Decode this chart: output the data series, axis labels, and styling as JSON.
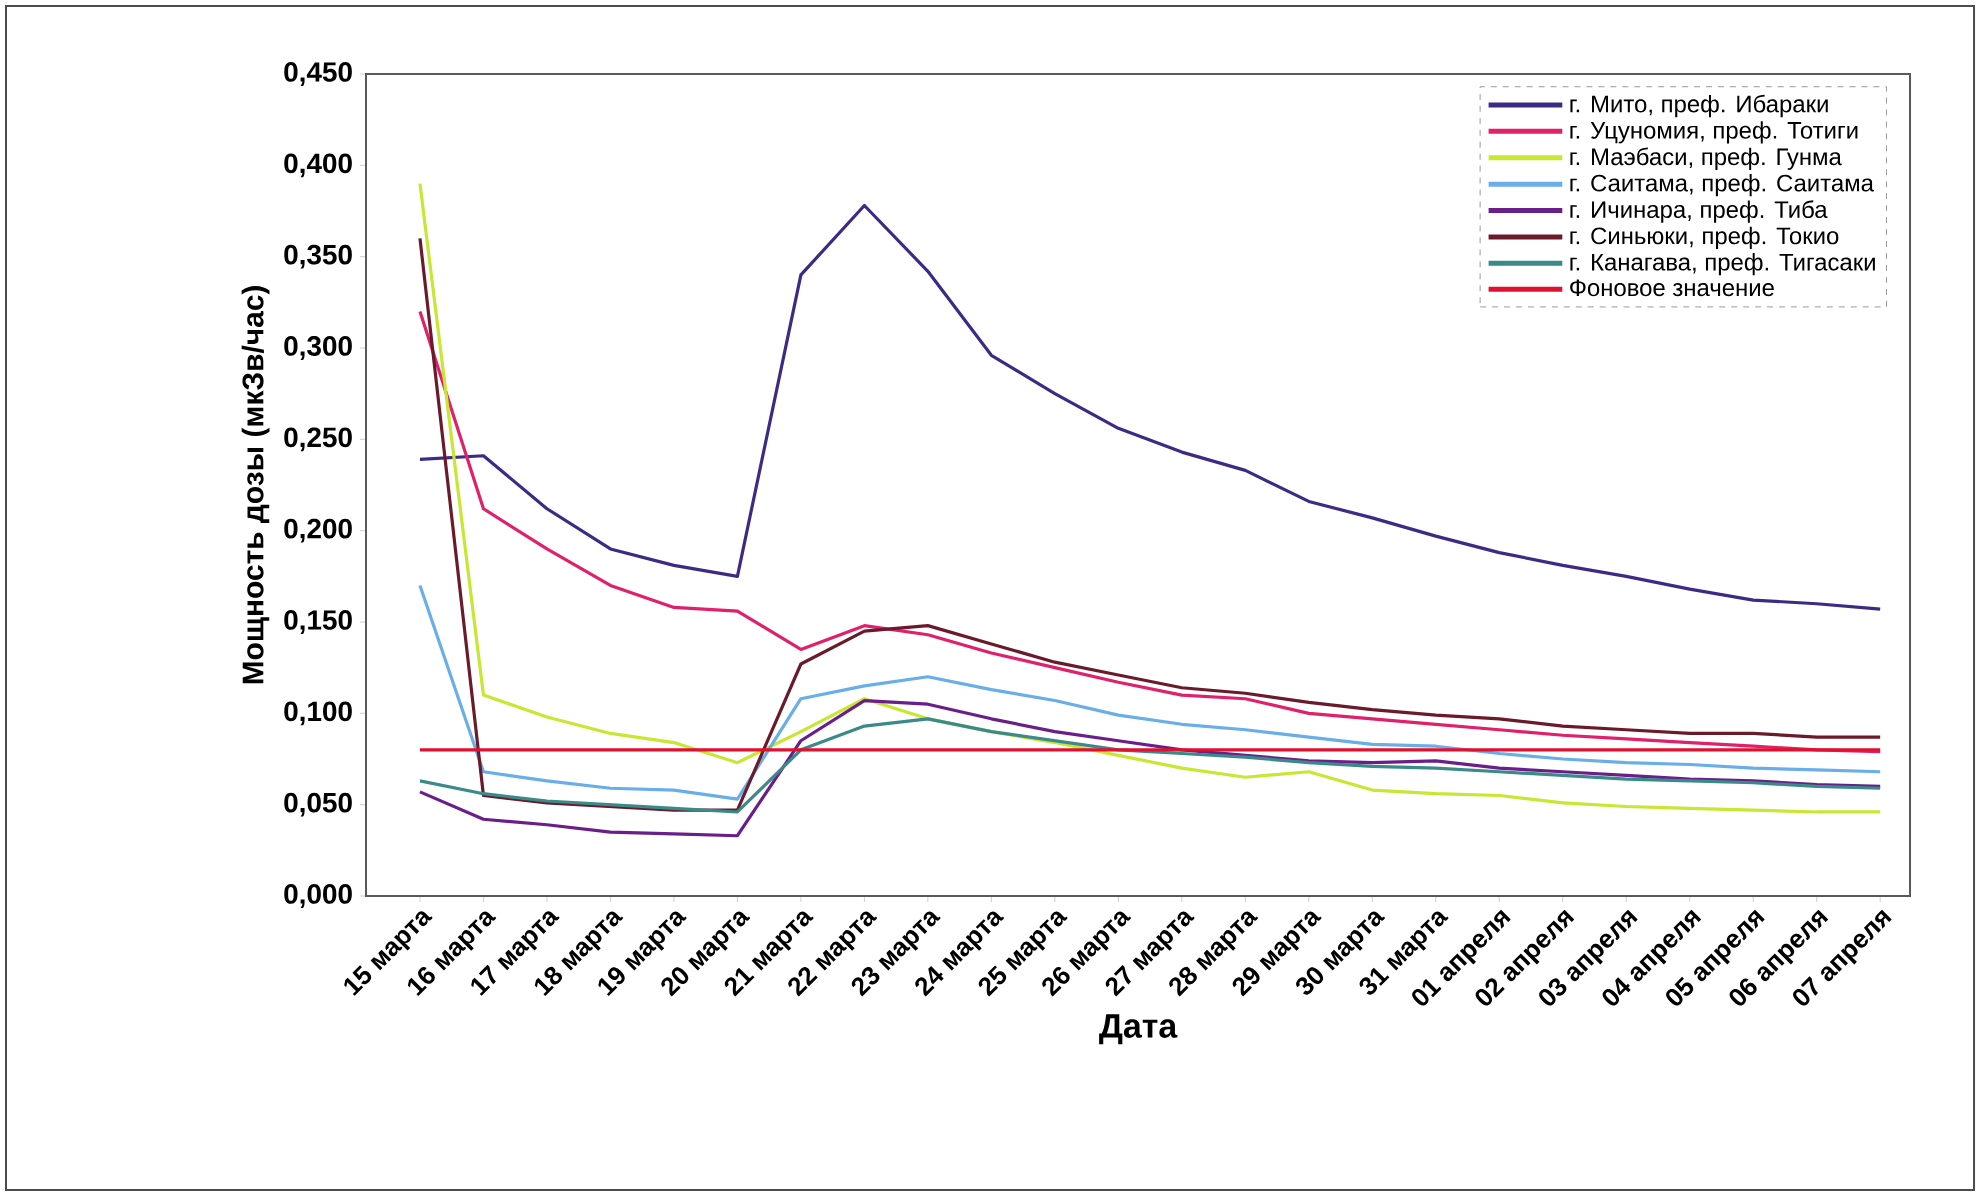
{
  "chart_data": {
    "type": "line",
    "xlabel": "Дата",
    "ylabel": "Мощность дозы (мкЗв/час)",
    "categories": [
      "15 марта",
      "16 марта",
      "17 марта",
      "18 марта",
      "19 марта",
      "20 марта",
      "21 марта",
      "22 марта",
      "23 марта",
      "24 марта",
      "25 марта",
      "26 марта",
      "27 марта",
      "28 марта",
      "29 марта",
      "30 марта",
      "31 марта",
      "01 апреля",
      "02 апреля",
      "03 апреля",
      "04 апреля",
      "05 апреля",
      "06 апреля",
      "07 апреля"
    ],
    "series": [
      {
        "name": "г. Мито, преф. Ибараки",
        "color": "#3d2a85",
        "values": [
          0.239,
          0.241,
          0.212,
          0.19,
          0.181,
          0.175,
          0.34,
          0.378,
          0.342,
          0.296,
          0.275,
          0.256,
          0.243,
          0.233,
          0.216,
          0.207,
          0.197,
          0.188,
          0.181,
          0.175,
          0.168,
          0.162,
          0.16,
          0.157
        ]
      },
      {
        "name": "г. Уцуномия, преф. Тотиги",
        "color": "#e0206a",
        "values": [
          0.32,
          0.212,
          0.19,
          0.17,
          0.158,
          0.156,
          0.135,
          0.148,
          0.143,
          0.133,
          0.125,
          0.117,
          0.11,
          0.108,
          0.1,
          0.097,
          0.094,
          0.091,
          0.088,
          0.086,
          0.084,
          0.082,
          0.08,
          0.079
        ]
      },
      {
        "name": "г. Маэбаси, преф. Гунма",
        "color": "#c8e632",
        "values": [
          0.39,
          0.11,
          0.098,
          0.089,
          0.084,
          0.073,
          0.09,
          0.108,
          0.097,
          0.09,
          0.084,
          0.077,
          0.07,
          0.065,
          0.068,
          0.058,
          0.056,
          0.055,
          0.051,
          0.049,
          0.048,
          0.047,
          0.046,
          0.046
        ]
      },
      {
        "name": "г. Саитама, преф. Саитама",
        "color": "#6aaee8",
        "values": [
          0.17,
          0.068,
          0.063,
          0.059,
          0.058,
          0.053,
          0.108,
          0.115,
          0.12,
          0.113,
          0.107,
          0.099,
          0.094,
          0.091,
          0.087,
          0.083,
          0.082,
          0.078,
          0.075,
          0.073,
          0.072,
          0.07,
          0.069,
          0.068
        ]
      },
      {
        "name": "г. Ичинара, преф. Тиба",
        "color": "#6a1e8a",
        "values": [
          0.057,
          0.042,
          0.039,
          0.035,
          0.034,
          0.033,
          0.085,
          0.107,
          0.105,
          0.097,
          0.09,
          0.085,
          0.08,
          0.077,
          0.074,
          0.073,
          0.074,
          0.07,
          0.068,
          0.066,
          0.064,
          0.063,
          0.061,
          0.06
        ]
      },
      {
        "name": "г. Синьюки, преф. Токио",
        "color": "#6a1a2a",
        "values": [
          0.36,
          0.055,
          0.051,
          0.049,
          0.047,
          0.047,
          0.127,
          0.145,
          0.148,
          0.138,
          0.128,
          0.121,
          0.114,
          0.111,
          0.106,
          0.102,
          0.099,
          0.097,
          0.093,
          0.091,
          0.089,
          0.089,
          0.087,
          0.087
        ]
      },
      {
        "name": "г. Канагава, преф. Тигасаки",
        "color": "#3a8a8a",
        "values": [
          0.063,
          0.056,
          0.052,
          0.05,
          0.048,
          0.046,
          0.08,
          0.093,
          0.097,
          0.09,
          0.085,
          0.08,
          0.078,
          0.076,
          0.073,
          0.071,
          0.07,
          0.068,
          0.066,
          0.064,
          0.063,
          0.062,
          0.06,
          0.059
        ]
      }
    ],
    "ref_lines": [
      {
        "axis": "y",
        "value": 0.08,
        "label": "Фоновое значение",
        "color": "#e01030"
      }
    ],
    "ylim": [
      0,
      0.45
    ],
    "yticks": [
      {
        "value": 0,
        "label": "0,000"
      },
      {
        "value": 0.05,
        "label": "0,050"
      },
      {
        "value": 0.1,
        "label": "0,100"
      },
      {
        "value": 0.15,
        "label": "0,150"
      },
      {
        "value": 0.2,
        "label": "0,200"
      },
      {
        "value": 0.25,
        "label": "0,250"
      },
      {
        "value": 0.3,
        "label": "0,300"
      },
      {
        "value": 0.35,
        "label": "0,350"
      },
      {
        "value": 0.4,
        "label": "0,400"
      },
      {
        "value": 0.45,
        "label": "0,450"
      }
    ],
    "legend": "top right",
    "grid": false,
    "marker": "none",
    "line_style": "solid"
  }
}
